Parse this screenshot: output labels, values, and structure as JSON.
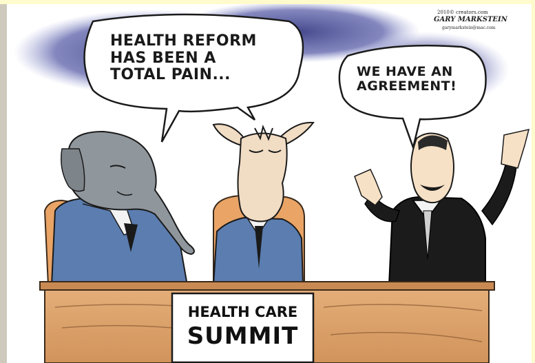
{
  "cartoon": {
    "speech_left": "HEALTH REFORM\nHAS BEEN A\nTOTAL PAIN...",
    "speech_right": "WE HAVE AN\nAGREEMENT!",
    "placard_line1": "HEALTH CARE",
    "placard_line2": "SUMMIT",
    "credit_copyright": "2010© creators.com",
    "credit_signature": "GARY MARKSTEIN",
    "credit_email": "garymarkstein@mac.com"
  },
  "colors": {
    "page_background": "#fffbcc",
    "sky_shadow": "#3b3f86",
    "desk": "#d9a06b",
    "chair": "#e9a466",
    "elephant_skin": "#8f969c",
    "donkey_skin": "#f1dcc4",
    "suit_blue": "#5b7db0",
    "suit_black": "#1b1b1b"
  }
}
